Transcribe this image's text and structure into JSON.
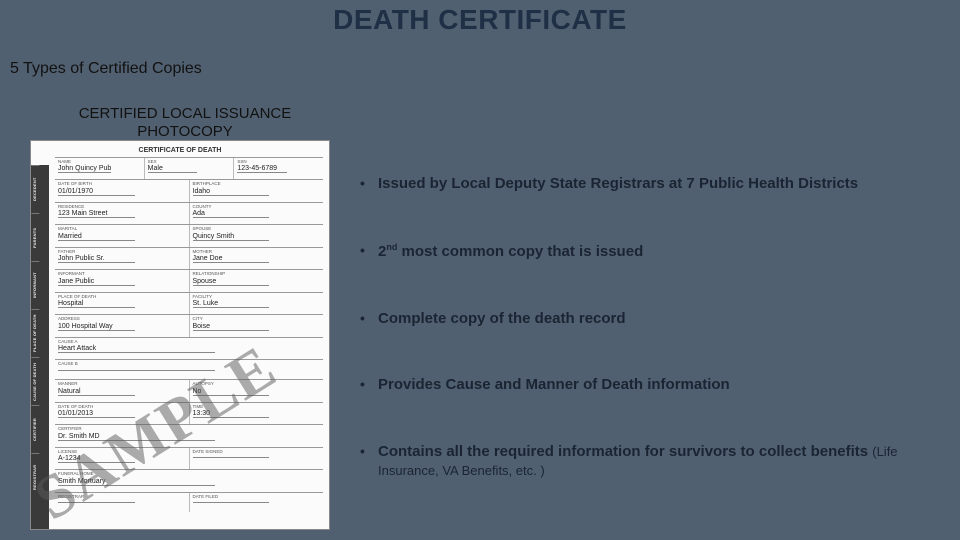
{
  "slide": {
    "title": "DEATH CERTIFICATE",
    "subtitle": "5 Types of Certified Copies",
    "caption_line1": "CERTIFIED LOCAL ISSUANCE",
    "caption_line2": "PHOTOCOPY",
    "background_color": "#516070",
    "title_color": "#1f2f45",
    "title_fontsize": 28,
    "text_color": "#1a2433"
  },
  "bullets": [
    {
      "text": "Issued by Local Deputy State Registrars at 7 Public Health Districts"
    },
    {
      "text_prefix": "2",
      "text_sup": "nd",
      "text_suffix": " most common copy that is issued"
    },
    {
      "text": "Complete copy of the death record"
    },
    {
      "text": "Provides Cause and Manner of Death information"
    },
    {
      "text": "Contains all the required information for survivors to collect benefits ",
      "sub": "(Life Insurance,  VA Benefits, etc. )"
    }
  ],
  "sample_doc": {
    "watermark": "SAMPLE",
    "header": "CERTIFICATE OF DEATH",
    "background": "#fbfbfb",
    "border_color": "#888888",
    "sidebar_bg": "#3a3a3a",
    "sidebar_labels": [
      "DECEDENT",
      "PARENTS",
      "INFORMANT",
      "PLACE OF DEATH",
      "CAUSE OF DEATH",
      "CERTIFIER",
      "REGISTRAR"
    ],
    "rows": [
      [
        {
          "label": "NAME",
          "val": "John Quincy Pub"
        },
        {
          "label": "SEX",
          "val": "Male"
        },
        {
          "label": "SSN",
          "val": "123-45-6789"
        }
      ],
      [
        {
          "label": "DATE OF BIRTH",
          "val": "01/01/1970"
        },
        {
          "label": "BIRTHPLACE",
          "val": "Idaho"
        }
      ],
      [
        {
          "label": "RESIDENCE",
          "val": "123 Main Street"
        },
        {
          "label": "COUNTY",
          "val": "Ada"
        }
      ],
      [
        {
          "label": "MARITAL",
          "val": "Married"
        },
        {
          "label": "SPOUSE",
          "val": "Quincy Smith"
        }
      ],
      [
        {
          "label": "FATHER",
          "val": "John Public Sr."
        },
        {
          "label": "MOTHER",
          "val": "Jane Doe"
        }
      ],
      [
        {
          "label": "INFORMANT",
          "val": "Jane Public"
        },
        {
          "label": "RELATIONSHIP",
          "val": "Spouse"
        }
      ],
      [
        {
          "label": "PLACE OF DEATH",
          "val": "Hospital"
        },
        {
          "label": "FACILITY",
          "val": "St. Luke"
        }
      ],
      [
        {
          "label": "ADDRESS",
          "val": "100 Hospital Way"
        },
        {
          "label": "CITY",
          "val": "Boise"
        }
      ],
      [
        {
          "label": "CAUSE A",
          "val": "Heart Attack"
        }
      ],
      [
        {
          "label": "CAUSE B",
          "val": ""
        }
      ],
      [
        {
          "label": "MANNER",
          "val": "Natural"
        },
        {
          "label": "AUTOPSY",
          "val": "No"
        }
      ],
      [
        {
          "label": "DATE OF DEATH",
          "val": "01/01/2013"
        },
        {
          "label": "TIME",
          "val": "13:30"
        }
      ],
      [
        {
          "label": "CERTIFIER",
          "val": "Dr. Smith MD"
        }
      ],
      [
        {
          "label": "LICENSE",
          "val": "A-1234"
        },
        {
          "label": "DATE SIGNED",
          "val": ""
        }
      ],
      [
        {
          "label": "FUNERAL HOME",
          "val": "Smith Mortuary"
        }
      ],
      [
        {
          "label": "REGISTRAR",
          "val": ""
        },
        {
          "label": "DATE FILED",
          "val": ""
        }
      ]
    ]
  }
}
